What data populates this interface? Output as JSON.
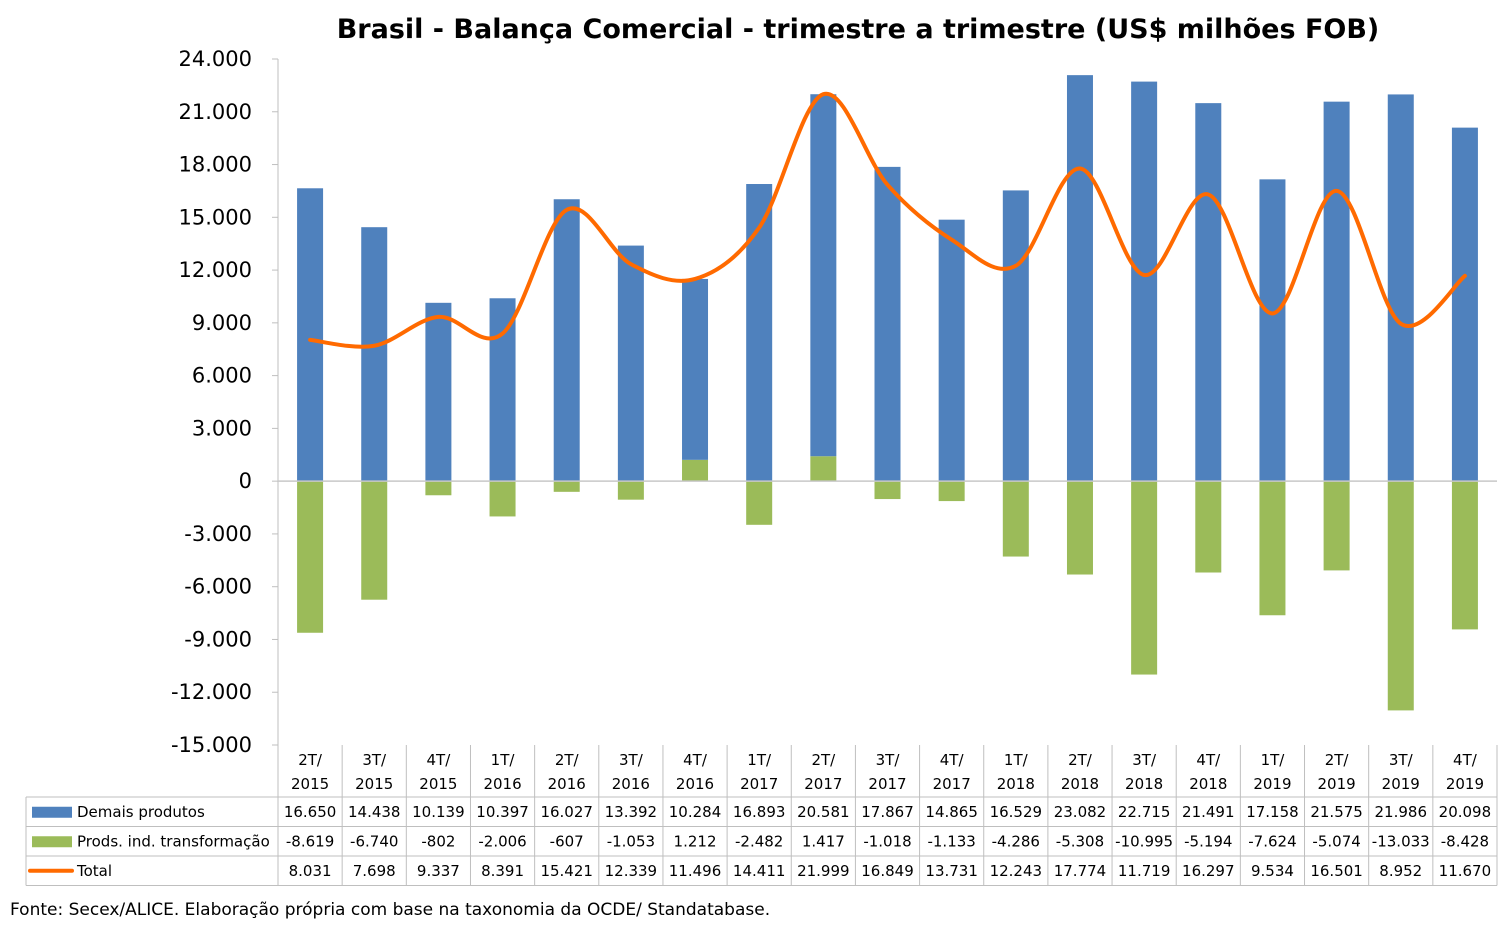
{
  "chart_data": {
    "type": "bar",
    "title": "Brasil - Balança Comercial - trimestre a trimestre (US$ milhões FOB)",
    "xlabel": "",
    "ylabel": "",
    "ylim": [
      -15000,
      24000
    ],
    "yticks": [
      24000,
      21000,
      18000,
      15000,
      12000,
      9000,
      6000,
      3000,
      0,
      -3000,
      -6000,
      -9000,
      -12000,
      -15000
    ],
    "ytick_labels": [
      "24.000",
      "21.000",
      "18.000",
      "15.000",
      "12.000",
      "9.000",
      "6.000",
      "3.000",
      "0",
      "-3.000",
      "-6.000",
      "-9.000",
      "-12.000",
      "-15.000"
    ],
    "grid": false,
    "stacked": true,
    "categories": [
      [
        "2T/",
        "2015"
      ],
      [
        "3T/",
        "2015"
      ],
      [
        "4T/",
        "2015"
      ],
      [
        "1T/",
        "2016"
      ],
      [
        "2T/",
        "2016"
      ],
      [
        "3T/",
        "2016"
      ],
      [
        "4T/",
        "2016"
      ],
      [
        "1T/",
        "2017"
      ],
      [
        "2T/",
        "2017"
      ],
      [
        "3T/",
        "2017"
      ],
      [
        "4T/",
        "2017"
      ],
      [
        "1T/",
        "2018"
      ],
      [
        "2T/",
        "2018"
      ],
      [
        "3T/",
        "2018"
      ],
      [
        "4T/",
        "2018"
      ],
      [
        "1T/",
        "2019"
      ],
      [
        "2T/",
        "2019"
      ],
      [
        "3T/",
        "2019"
      ],
      [
        "4T/",
        "2019"
      ]
    ],
    "series": [
      {
        "name": "Demais produtos",
        "kind": "bar",
        "color": "#4F81BD",
        "values": [
          16650,
          14438,
          10139,
          10397,
          16027,
          13392,
          10284,
          16893,
          20581,
          17867,
          14865,
          16529,
          23082,
          22715,
          21491,
          17158,
          21575,
          21986,
          20098
        ],
        "labels": [
          "16.650",
          "14.438",
          "10.139",
          "10.397",
          "16.027",
          "13.392",
          "10.284",
          "16.893",
          "20.581",
          "17.867",
          "14.865",
          "16.529",
          "23.082",
          "22.715",
          "21.491",
          "17.158",
          "21.575",
          "21.986",
          "20.098"
        ]
      },
      {
        "name": "Prods. ind. transformação",
        "kind": "bar",
        "color": "#9BBB59",
        "values": [
          -8619,
          -6740,
          -802,
          -2006,
          -607,
          -1053,
          1212,
          -2482,
          1417,
          -1018,
          -1133,
          -4286,
          -5308,
          -10995,
          -5194,
          -7624,
          -5074,
          -13033,
          -8428
        ],
        "labels": [
          "-8.619",
          "-6.740",
          "-802",
          "-2.006",
          "-607",
          "-1.053",
          "1.212",
          "-2.482",
          "1.417",
          "-1.018",
          "-1.133",
          "-4.286",
          "-5.308",
          "-10.995",
          "-5.194",
          "-7.624",
          "-5.074",
          "-13.033",
          "-8.428"
        ]
      },
      {
        "name": "Total",
        "kind": "line",
        "color": "#FF6A00",
        "values": [
          8031,
          7698,
          9337,
          8391,
          15421,
          12339,
          11496,
          14411,
          21999,
          16849,
          13731,
          12243,
          17774,
          11719,
          16297,
          9534,
          16501,
          8952,
          11670
        ],
        "labels": [
          "8.031",
          "7.698",
          "9.337",
          "8.391",
          "15.421",
          "12.339",
          "11.496",
          "14.411",
          "21.999",
          "16.849",
          "13.731",
          "12.243",
          "17.774",
          "11.719",
          "16.297",
          "9.534",
          "16.501",
          "8.952",
          "11.670"
        ]
      }
    ],
    "legend_placement": "data-table-bottom",
    "source_note": "Fonte: Secex/ALICE. Elaboração própria com base na taxonomia da OCDE/ Standatabase."
  }
}
